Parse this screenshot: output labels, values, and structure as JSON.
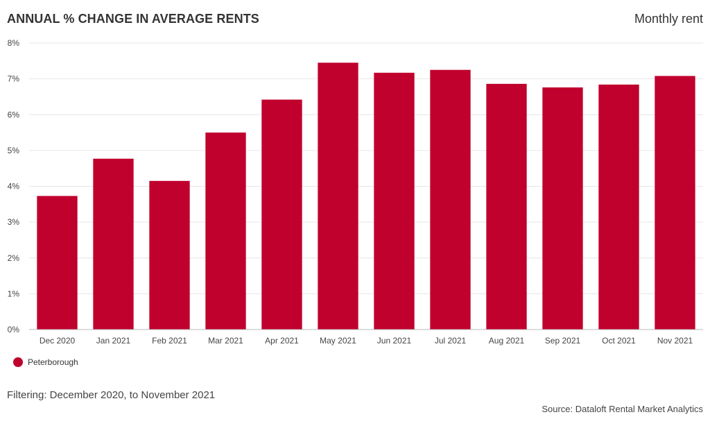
{
  "header": {
    "title": "ANNUAL % CHANGE IN AVERAGE RENTS",
    "subtitle": "Monthly rent"
  },
  "footer": {
    "filter_note": "Filtering: December 2020, to November 2021",
    "source": "Source: Dataloft Rental Market Analytics"
  },
  "chart_data": {
    "type": "bar",
    "title": "ANNUAL % CHANGE IN AVERAGE RENTS",
    "xlabel": "",
    "ylabel": "",
    "categories": [
      "Dec 2020",
      "Jan 2021",
      "Feb 2021",
      "Mar 2021",
      "Apr 2021",
      "May 2021",
      "Jun 2021",
      "Jul 2021",
      "Aug 2021",
      "Sep 2021",
      "Oct 2021",
      "Nov 2021"
    ],
    "series": [
      {
        "name": "Peterborough",
        "color": "#c0002d",
        "values": [
          3.73,
          4.77,
          4.15,
          5.5,
          6.42,
          7.45,
          7.17,
          7.25,
          6.86,
          6.76,
          6.84,
          7.08
        ]
      }
    ],
    "ylim": [
      0,
      8
    ],
    "yticks": [
      "0%",
      "1%",
      "2%",
      "3%",
      "4%",
      "5%",
      "6%",
      "7%",
      "8%"
    ],
    "grid": true,
    "legend_position": "bottom-left"
  }
}
